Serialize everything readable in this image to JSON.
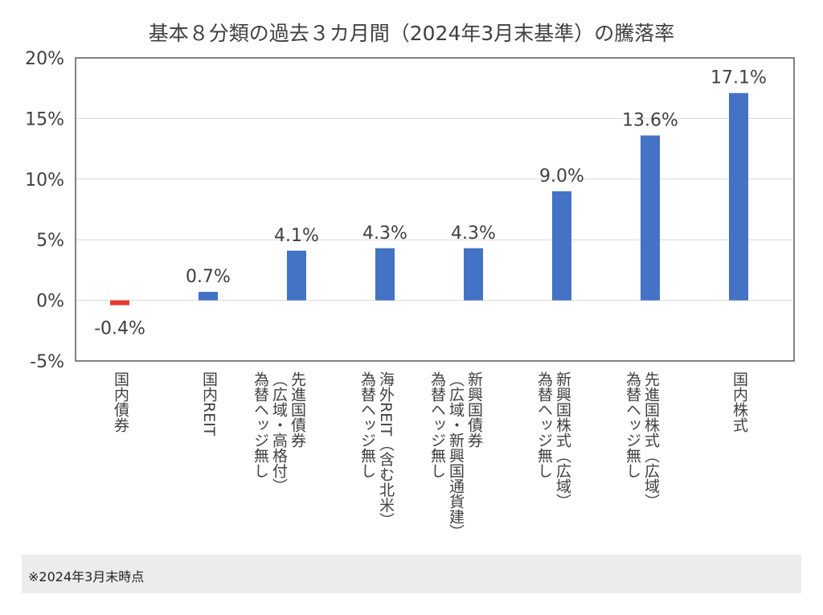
{
  "chart_data": {
    "type": "bar",
    "title": "基本８分類の過去３カ月間（2024年3月末基準）の騰落率",
    "categories": [
      "国内債券",
      "国内REIT",
      "先進国債券\n（広域・高格付）\n為替ヘッジ無し",
      "海外REIT（含む北米）\n為替ヘッジ無し",
      "新興国債券\n（広域・新興国通貨建）\n為替ヘッジ無し",
      "新興国株式（広域）\n為替ヘッジ無し",
      "先進国株式（広域）\n為替ヘッジ無し",
      "国内株式"
    ],
    "values": [
      -0.4,
      0.7,
      4.1,
      4.3,
      4.3,
      9.0,
      13.6,
      17.1
    ],
    "data_labels": [
      "-0.4%",
      "0.7%",
      "4.1%",
      "4.3%",
      "4.3%",
      "9.0%",
      "13.6%",
      "17.1%"
    ],
    "ylim": [
      -5,
      20
    ],
    "yticks": [
      -5,
      0,
      5,
      10,
      15,
      20
    ],
    "ytick_labels": [
      "-5%",
      "0%",
      "5%",
      "10%",
      "15%",
      "20%"
    ],
    "grid": true,
    "colors": {
      "positive": "#4472c4",
      "negative": "#e8392c",
      "grid": "#d9d9d9",
      "frame": "#595959"
    }
  },
  "footnote": "※2024年3月末時点"
}
